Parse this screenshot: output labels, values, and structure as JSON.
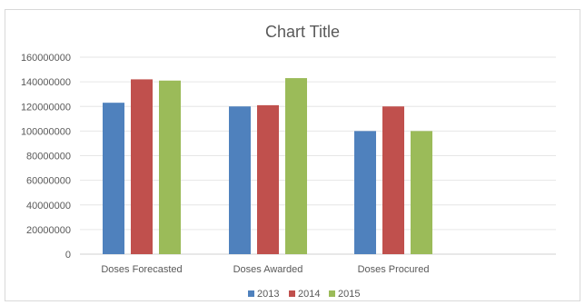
{
  "chart_data": {
    "type": "bar",
    "title": "Chart Title",
    "xlabel": "",
    "ylabel": "",
    "categories": [
      "Doses Forecasted",
      "Doses Awarded",
      "Doses Procured"
    ],
    "series": [
      {
        "name": "2013",
        "color": "#4F81BD",
        "values": [
          123000000,
          120000000,
          100000000
        ]
      },
      {
        "name": "2014",
        "color": "#C0504D",
        "values": [
          142000000,
          121000000,
          120000000
        ]
      },
      {
        "name": "2015",
        "color": "#9BBB59",
        "values": [
          141000000,
          143000000,
          100000000
        ]
      }
    ],
    "ylim": [
      0,
      160000000
    ],
    "yticks": [
      "0",
      "20000000",
      "40000000",
      "60000000",
      "80000000",
      "100000000",
      "120000000",
      "140000000",
      "160000000"
    ],
    "grid": true,
    "legend_position": "bottom"
  }
}
